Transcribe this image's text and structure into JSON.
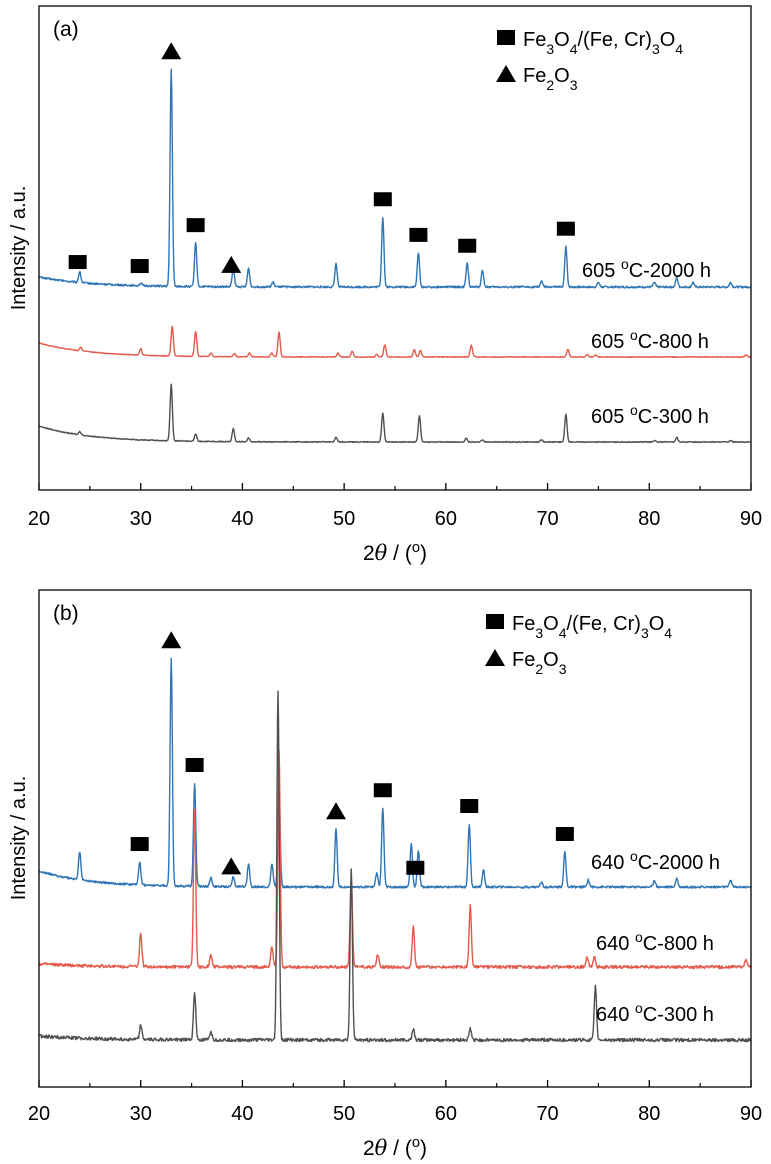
{
  "chart_data": [
    {
      "type": "line",
      "panel_label": "(a)",
      "xlabel_prefix": "2",
      "xlabel_var": "θ",
      "xlabel_suffix": " / (",
      "xlabel_unit": "o",
      "xlabel_close": ")",
      "ylabel": "Intensity / a.u.",
      "xlim": [
        20,
        90
      ],
      "xticks": [
        20,
        30,
        40,
        50,
        60,
        70,
        80,
        90
      ],
      "yticks_shown": false,
      "legend": [
        {
          "marker": "square",
          "parts": [
            "Fe",
            "3",
            "O",
            "4",
            "/(Fe, Cr)",
            "3",
            "O",
            "4"
          ]
        },
        {
          "marker": "triangle",
          "parts": [
            "Fe",
            "2",
            "O",
            "3"
          ]
        }
      ],
      "series": [
        {
          "name": "605 oC-2000 h",
          "label_parts": [
            "605 ",
            "o",
            "C-2000 h"
          ],
          "color": "#2e75b6",
          "offset": 2,
          "peaks": [
            [
              24.0,
              0.7
            ],
            [
              30.0,
              0.15
            ],
            [
              33.0,
              14.0
            ],
            [
              35.4,
              2.8
            ],
            [
              39.1,
              1.2
            ],
            [
              40.6,
              1.2
            ],
            [
              43.0,
              0.3
            ],
            [
              49.2,
              1.5
            ],
            [
              53.8,
              4.5
            ],
            [
              57.3,
              2.2
            ],
            [
              62.1,
              1.5
            ],
            [
              63.6,
              1.1
            ],
            [
              69.4,
              0.4
            ],
            [
              71.8,
              2.6
            ],
            [
              75.0,
              0.3
            ],
            [
              80.5,
              0.3
            ],
            [
              82.7,
              0.6
            ],
            [
              84.3,
              0.3
            ],
            [
              88.0,
              0.3
            ]
          ]
        },
        {
          "name": "605 oC-800 h",
          "label_parts": [
            "605 ",
            "o",
            "C-800 h"
          ],
          "color": "#e45a4b",
          "offset": 1,
          "peaks": [
            [
              24.1,
              0.6
            ],
            [
              30.0,
              1.0
            ],
            [
              33.1,
              4.5
            ],
            [
              35.4,
              3.8
            ],
            [
              36.9,
              0.5
            ],
            [
              39.2,
              0.5
            ],
            [
              40.7,
              0.6
            ],
            [
              42.9,
              0.6
            ],
            [
              43.6,
              3.8
            ],
            [
              49.4,
              0.6
            ],
            [
              50.8,
              0.9
            ],
            [
              53.2,
              0.4
            ],
            [
              54.0,
              1.9
            ],
            [
              56.9,
              1.1
            ],
            [
              57.5,
              1.0
            ],
            [
              62.5,
              1.8
            ],
            [
              72.0,
              1.2
            ],
            [
              73.9,
              0.4
            ],
            [
              74.7,
              0.3
            ],
            [
              89.5,
              0.3
            ]
          ]
        },
        {
          "name": "605 oC-300 h",
          "label_parts": [
            "605 ",
            "o",
            "C-300 h"
          ],
          "color": "#505050",
          "offset": 0,
          "peaks": [
            [
              24.0,
              0.4
            ],
            [
              33.0,
              7.5
            ],
            [
              35.4,
              1.0
            ],
            [
              39.1,
              1.7
            ],
            [
              40.6,
              0.5
            ],
            [
              49.2,
              0.6
            ],
            [
              53.8,
              3.9
            ],
            [
              57.4,
              3.5
            ],
            [
              62.0,
              0.5
            ],
            [
              63.6,
              0.3
            ],
            [
              69.4,
              0.3
            ],
            [
              71.8,
              3.7
            ],
            [
              80.5,
              0.2
            ],
            [
              82.7,
              0.6
            ],
            [
              88.0,
              0.2
            ]
          ]
        }
      ],
      "annotations": [
        {
          "marker": "square",
          "x": 23.8,
          "on_series": 0
        },
        {
          "marker": "square",
          "x": 29.9,
          "on_series": 0
        },
        {
          "marker": "triangle",
          "x": 33.0,
          "on_series": 0
        },
        {
          "marker": "square",
          "x": 35.4,
          "on_series": 0
        },
        {
          "marker": "triangle",
          "x": 38.9,
          "on_series": 0
        },
        {
          "marker": "square",
          "x": 53.8,
          "on_series": 0
        },
        {
          "marker": "square",
          "x": 57.3,
          "on_series": 0
        },
        {
          "marker": "square",
          "x": 62.1,
          "on_series": 0
        },
        {
          "marker": "square",
          "x": 71.8,
          "on_series": 0
        }
      ]
    },
    {
      "type": "line",
      "panel_label": "(b)",
      "xlabel_prefix": "2",
      "xlabel_var": "θ",
      "xlabel_suffix": " / (",
      "xlabel_unit": "o",
      "xlabel_close": ")",
      "ylabel": "Intensity / a.u.",
      "xlim": [
        20,
        90
      ],
      "xticks": [
        20,
        30,
        40,
        50,
        60,
        70,
        80,
        90
      ],
      "yticks_shown": false,
      "legend": [
        {
          "marker": "square",
          "parts": [
            "Fe",
            "3",
            "O",
            "4",
            "/(Fe, Cr)",
            "3",
            "O",
            "4"
          ]
        },
        {
          "marker": "triangle",
          "parts": [
            "Fe",
            "2",
            "O",
            "3"
          ]
        }
      ],
      "series": [
        {
          "name": "640 oC-2000 h",
          "label_parts": [
            "640 ",
            "o",
            "C-2000 h"
          ],
          "color": "#2e75b6",
          "offset": 2,
          "peaks": [
            [
              24.0,
              1.6
            ],
            [
              29.9,
              1.3
            ],
            [
              33.0,
              13.0
            ],
            [
              35.3,
              5.9
            ],
            [
              36.9,
              0.5
            ],
            [
              39.1,
              0.6
            ],
            [
              40.6,
              1.3
            ],
            [
              42.9,
              1.3
            ],
            [
              43.6,
              5.5
            ],
            [
              49.2,
              3.3
            ],
            [
              53.2,
              0.8
            ],
            [
              53.8,
              4.5
            ],
            [
              56.6,
              2.5
            ],
            [
              57.3,
              2.1
            ],
            [
              62.3,
              3.6
            ],
            [
              63.7,
              1.0
            ],
            [
              69.4,
              0.3
            ],
            [
              71.7,
              2.0
            ],
            [
              74.0,
              0.4
            ],
            [
              80.5,
              0.4
            ],
            [
              82.7,
              0.5
            ],
            [
              88.0,
              0.4
            ]
          ]
        },
        {
          "name": "640 oC-800 h",
          "label_parts": [
            "640 ",
            "o",
            "C-800 h"
          ],
          "color": "#e45a4b",
          "offset": 1,
          "peaks": [
            [
              30.0,
              1.3
            ],
            [
              35.3,
              6.1
            ],
            [
              36.9,
              0.5
            ],
            [
              42.9,
              0.8
            ],
            [
              43.6,
              8.5
            ],
            [
              50.7,
              3.6
            ],
            [
              53.3,
              0.5
            ],
            [
              56.8,
              1.6
            ],
            [
              62.4,
              2.4
            ],
            [
              73.9,
              0.4
            ],
            [
              74.6,
              0.4
            ],
            [
              89.5,
              0.3
            ]
          ]
        },
        {
          "name": "640 oC-300 h",
          "label_parts": [
            "640 ",
            "o",
            "C-300 h"
          ],
          "color": "#505050",
          "offset": 0,
          "peaks": [
            [
              30.0,
              0.5
            ],
            [
              35.3,
              1.7
            ],
            [
              36.9,
              0.3
            ],
            [
              43.5,
              12.5
            ],
            [
              50.7,
              6.1
            ],
            [
              56.8,
              0.4
            ],
            [
              62.4,
              0.4
            ],
            [
              74.7,
              1.9
            ]
          ]
        }
      ],
      "annotations": [
        {
          "marker": "square",
          "x": 29.9,
          "on_series": 0
        },
        {
          "marker": "triangle",
          "x": 33.0,
          "on_series": 0
        },
        {
          "marker": "square",
          "x": 35.3,
          "on_series": 0
        },
        {
          "marker": "triangle",
          "x": 38.9,
          "on_series": 0
        },
        {
          "marker": "triangle",
          "x": 49.2,
          "on_series": 0
        },
        {
          "marker": "square",
          "x": 53.8,
          "on_series": 0
        },
        {
          "marker": "square",
          "x": 57.0,
          "on_series": 0
        },
        {
          "marker": "square",
          "x": 62.3,
          "on_series": 0
        },
        {
          "marker": "square",
          "x": 71.7,
          "on_series": 0
        }
      ]
    }
  ]
}
